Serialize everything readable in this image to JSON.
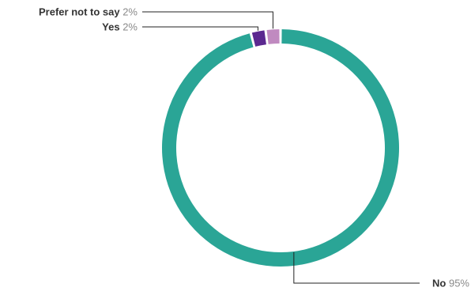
{
  "chart_data": {
    "type": "pie",
    "variant": "donut",
    "title": "",
    "slices": [
      {
        "label": "No",
        "value": 95,
        "display": "95%",
        "color": "#2aa596",
        "label_side": "bottom-right"
      },
      {
        "label": "Yes",
        "value": 2,
        "display": "2%",
        "color": "#5b2890",
        "label_side": "top-left"
      },
      {
        "label": "Prefer not to say",
        "value": 2,
        "display": "2%",
        "color": "#c08ac0",
        "label_side": "top-left"
      }
    ],
    "legend": "none"
  }
}
